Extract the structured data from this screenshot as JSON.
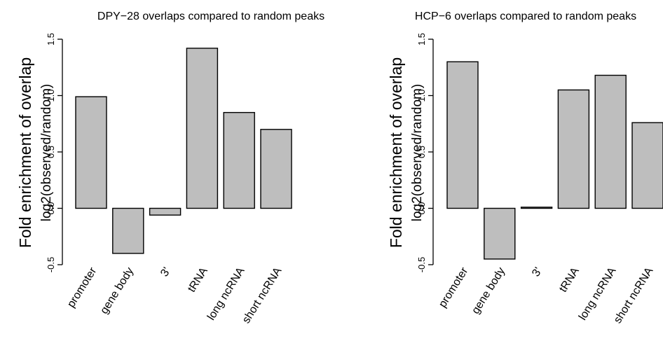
{
  "chart_data": [
    {
      "type": "bar",
      "title": "DPY−28 overlaps compared to random peaks",
      "ylabel": "Fold enrichment of overlap",
      "ylabel_sub": "log2(observed/random)",
      "categories": [
        "promoter",
        "gene body",
        "3'",
        "tRNA",
        "long ncRNA",
        "short ncRNA"
      ],
      "values": [
        0.99,
        -0.4,
        -0.06,
        1.42,
        0.85,
        0.7
      ],
      "ylim": [
        -0.5,
        1.5
      ],
      "yticks": [
        "-0.5",
        "0.0",
        "0.5",
        "1.0",
        "1.5"
      ],
      "bar_color": "#bebebe",
      "grid": false,
      "legend": "none"
    },
    {
      "type": "bar",
      "title": "HCP−6 overlaps compared to random peaks",
      "ylabel": "Fold enrichment of overlap",
      "ylabel_sub": "log2(observed/random)",
      "categories": [
        "promoter",
        "gene body",
        "3'",
        "tRNA",
        "long ncRNA",
        "short ncRNA"
      ],
      "values": [
        1.3,
        -0.45,
        0.01,
        1.05,
        1.18,
        0.76
      ],
      "ylim": [
        -0.5,
        1.5
      ],
      "yticks": [
        "-0.5",
        "0.0",
        "0.5",
        "1.0",
        "1.5"
      ],
      "bar_color": "#bebebe",
      "grid": false,
      "legend": "none"
    }
  ]
}
